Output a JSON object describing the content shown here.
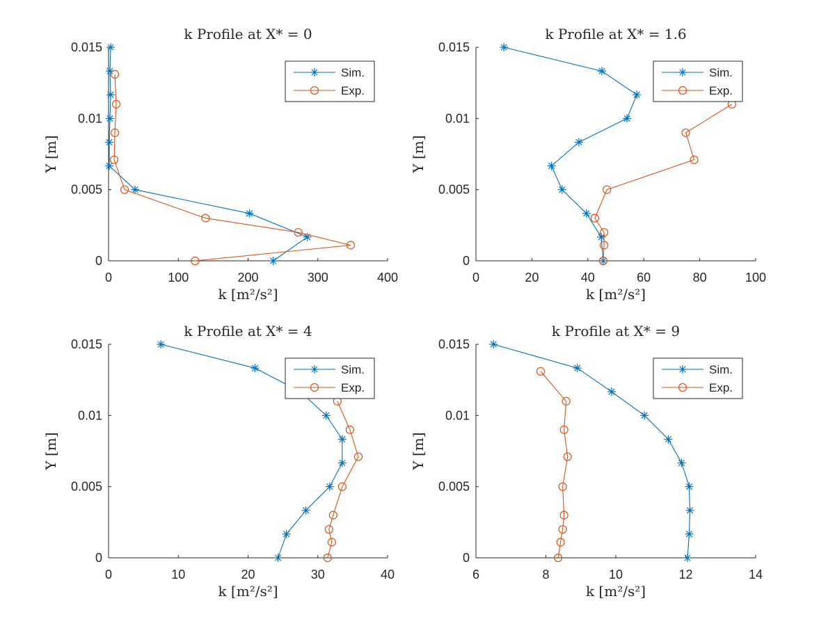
{
  "figure": {
    "legend_location": "top-right",
    "colors": {
      "sim": "#0072BD",
      "exp": "#D95319",
      "axis": "#262626"
    },
    "markers": {
      "sim": "asterisk",
      "exp": "circle"
    }
  },
  "chart_data": [
    {
      "type": "line",
      "title": "k Profile at X* = 0",
      "xlabel": "k [m²/s²]",
      "ylabel": "Y [m]",
      "xlim": [
        0,
        400
      ],
      "ylim": [
        0,
        0.015
      ],
      "xticks": [
        "0",
        "100",
        "200",
        "300",
        "400"
      ],
      "yticks": [
        "0",
        "0.005",
        "0.01",
        "0.015"
      ],
      "legend": [
        "Sim.",
        "Exp."
      ],
      "series": [
        {
          "name": "Sim.",
          "x": [
            236,
            285,
            202,
            38,
            1,
            1,
            2,
            3,
            2,
            3
          ],
          "y": [
            0.0,
            0.00167,
            0.00333,
            0.005,
            0.00667,
            0.00833,
            0.01,
            0.01167,
            0.01333,
            0.015
          ]
        },
        {
          "name": "Exp.",
          "x": [
            124,
            347,
            272,
            139,
            23,
            8,
            9,
            11,
            9
          ],
          "y": [
            0.0,
            0.0011,
            0.002,
            0.003,
            0.005,
            0.0071,
            0.009,
            0.011,
            0.0131
          ]
        }
      ]
    },
    {
      "type": "line",
      "title": "k Profile at X* = 1.6",
      "xlabel": "k [m²/s²]",
      "ylabel": "Y [m]",
      "xlim": [
        0,
        100
      ],
      "ylim": [
        0,
        0.015
      ],
      "xticks": [
        "0",
        "20",
        "40",
        "60",
        "80",
        "100"
      ],
      "yticks": [
        "0",
        "0.005",
        "0.01",
        "0.015"
      ],
      "legend": [
        "Sim.",
        "Exp."
      ],
      "series": [
        {
          "name": "Sim.",
          "x": [
            45.5,
            44.8,
            39.5,
            30.8,
            27.0,
            36.8,
            54.0,
            57.5,
            45.0,
            10.0
          ],
          "y": [
            0.0,
            0.00167,
            0.00333,
            0.005,
            0.00667,
            0.00833,
            0.01,
            0.01167,
            0.01333,
            0.015
          ]
        },
        {
          "name": "Exp.",
          "x": [
            45.5,
            45.8,
            45.8,
            42.5,
            46.8,
            78.0,
            75.0,
            91.5
          ],
          "y": [
            0.0,
            0.0011,
            0.002,
            0.003,
            0.005,
            0.0071,
            0.009,
            0.011
          ]
        }
      ]
    },
    {
      "type": "line",
      "title": "k Profile at X* = 4",
      "xlabel": "k [m²/s²]",
      "ylabel": "Y [m]",
      "xlim": [
        0,
        40
      ],
      "ylim": [
        0,
        0.015
      ],
      "xticks": [
        "0",
        "10",
        "20",
        "30",
        "40"
      ],
      "yticks": [
        "0",
        "0.005",
        "0.01",
        "0.015"
      ],
      "legend": [
        "Sim.",
        "Exp."
      ],
      "series": [
        {
          "name": "Sim.",
          "x": [
            24.3,
            25.5,
            28.3,
            31.7,
            33.5,
            33.5,
            31.2,
            27.5,
            21.0,
            7.5
          ],
          "y": [
            0.0,
            0.00167,
            0.00333,
            0.005,
            0.00667,
            0.00833,
            0.01,
            0.01167,
            0.01333,
            0.015
          ]
        },
        {
          "name": "Exp.",
          "x": [
            31.4,
            32.0,
            31.6,
            32.2,
            33.5,
            35.8,
            34.6,
            32.8
          ],
          "y": [
            0.0,
            0.0011,
            0.002,
            0.003,
            0.005,
            0.0071,
            0.009,
            0.011
          ]
        }
      ]
    },
    {
      "type": "line",
      "title": "k Profile at X* = 9",
      "xlabel": "k [m²/s²]",
      "ylabel": "Y [m]",
      "xlim": [
        6,
        14
      ],
      "ylim": [
        0,
        0.015
      ],
      "xticks": [
        "6",
        "8",
        "10",
        "12",
        "14"
      ],
      "yticks": [
        "0",
        "0.005",
        "0.01",
        "0.015"
      ],
      "legend": [
        "Sim.",
        "Exp."
      ],
      "series": [
        {
          "name": "Sim.",
          "x": [
            12.05,
            12.1,
            12.12,
            12.1,
            11.88,
            11.5,
            10.82,
            9.88,
            8.9,
            6.5
          ],
          "y": [
            0.0,
            0.00167,
            0.00333,
            0.005,
            0.00667,
            0.00833,
            0.01,
            0.01167,
            0.01333,
            0.015
          ]
        },
        {
          "name": "Exp.",
          "x": [
            8.35,
            8.42,
            8.48,
            8.52,
            8.48,
            8.62,
            8.52,
            8.58,
            7.85
          ],
          "y": [
            0.0,
            0.0011,
            0.002,
            0.003,
            0.005,
            0.0071,
            0.009,
            0.011,
            0.0131
          ]
        }
      ]
    }
  ]
}
